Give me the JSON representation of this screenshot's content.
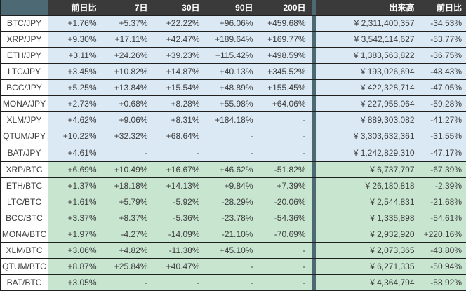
{
  "table": {
    "corner": "",
    "columns": [
      "前日比",
      "7日",
      "30日",
      "90日",
      "200日",
      "出来高",
      "前日比"
    ],
    "sections": [
      {
        "id": "jpy-pairs",
        "rows": [
          {
            "pair": "BTC/JPY",
            "values": [
              "+1.76%",
              "+5.37%",
              "+22.22%",
              "+96.06%",
              "+459.68%",
              "¥ 2,311,400,357",
              "-34.53%"
            ]
          },
          {
            "pair": "XRP/JPY",
            "values": [
              "+9.30%",
              "+17.11%",
              "+42.47%",
              "+189.64%",
              "+169.77%",
              "¥ 3,542,114,627",
              "-53.77%"
            ]
          },
          {
            "pair": "ETH/JPY",
            "values": [
              "+3.11%",
              "+24.26%",
              "+39.23%",
              "+115.42%",
              "+498.59%",
              "¥ 1,383,563,822",
              "-36.75%"
            ]
          },
          {
            "pair": "LTC/JPY",
            "values": [
              "+3.45%",
              "+10.82%",
              "+14.87%",
              "+40.13%",
              "+345.52%",
              "¥ 193,026,694",
              "-48.43%"
            ]
          },
          {
            "pair": "BCC/JPY",
            "values": [
              "+5.25%",
              "+13.84%",
              "+15.54%",
              "+48.89%",
              "+155.45%",
              "¥ 422,328,714",
              "-47.05%"
            ]
          },
          {
            "pair": "MONA/JPY",
            "values": [
              "+2.73%",
              "+0.68%",
              "+8.28%",
              "+55.98%",
              "+64.06%",
              "¥ 227,958,064",
              "-59.28%"
            ]
          },
          {
            "pair": "XLM/JPY",
            "values": [
              "+4.62%",
              "+9.06%",
              "+8.31%",
              "+184.18%",
              "-",
              "¥ 889,303,082",
              "-41.27%"
            ]
          },
          {
            "pair": "QTUM/JPY",
            "values": [
              "+10.22%",
              "+32.32%",
              "+68.64%",
              "-",
              "-",
              "¥ 3,303,632,361",
              "-31.55%"
            ]
          },
          {
            "pair": "BAT/JPY",
            "values": [
              "+4.61%",
              "-",
              "-",
              "-",
              "-",
              "¥ 1,242,829,310",
              "-47.17%"
            ]
          }
        ]
      },
      {
        "id": "btc-pairs",
        "rows": [
          {
            "pair": "XRP/BTC",
            "values": [
              "+6.69%",
              "+10.49%",
              "+16.67%",
              "+46.62%",
              "-51.82%",
              "¥ 6,737,797",
              "-67.39%"
            ]
          },
          {
            "pair": "ETH/BTC",
            "values": [
              "+1.37%",
              "+18.18%",
              "+14.13%",
              "+9.84%",
              "+7.39%",
              "¥ 26,180,818",
              "-2.39%"
            ]
          },
          {
            "pair": "LTC/BTC",
            "values": [
              "+1.61%",
              "+5.79%",
              "-5.92%",
              "-28.29%",
              "-20.06%",
              "¥ 2,544,831",
              "-21.68%"
            ]
          },
          {
            "pair": "BCC/BTC",
            "values": [
              "+3.37%",
              "+8.37%",
              "-5.36%",
              "-23.78%",
              "-54.36%",
              "¥ 1,335,898",
              "-54.61%"
            ]
          },
          {
            "pair": "MONA/BTC",
            "values": [
              "+1.97%",
              "-4.27%",
              "-14.09%",
              "-21.10%",
              "-70.69%",
              "¥ 2,932,920",
              "+220.16%"
            ]
          },
          {
            "pair": "XLM/BTC",
            "values": [
              "+3.06%",
              "+4.82%",
              "-11.38%",
              "+45.10%",
              "-",
              "¥ 2,073,365",
              "-43.80%"
            ]
          },
          {
            "pair": "QTUM/BTC",
            "values": [
              "+8.87%",
              "+25.84%",
              "+40.47%",
              "-",
              "-",
              "¥ 6,271,335",
              "-50.94%"
            ]
          },
          {
            "pair": "BAT/BTC",
            "values": [
              "+3.05%",
              "-",
              "-",
              "-",
              "-",
              "¥ 4,364,794",
              "-58.92%"
            ]
          }
        ]
      }
    ]
  },
  "colors": {
    "header_bg": "#3a3a3a",
    "accent_slate": "#4d6974",
    "jpy_row_bg": "#dbe9f4",
    "btc_row_bg": "#c8e5d0",
    "text": "#3d3d3d",
    "border": "#1f1f1f"
  }
}
